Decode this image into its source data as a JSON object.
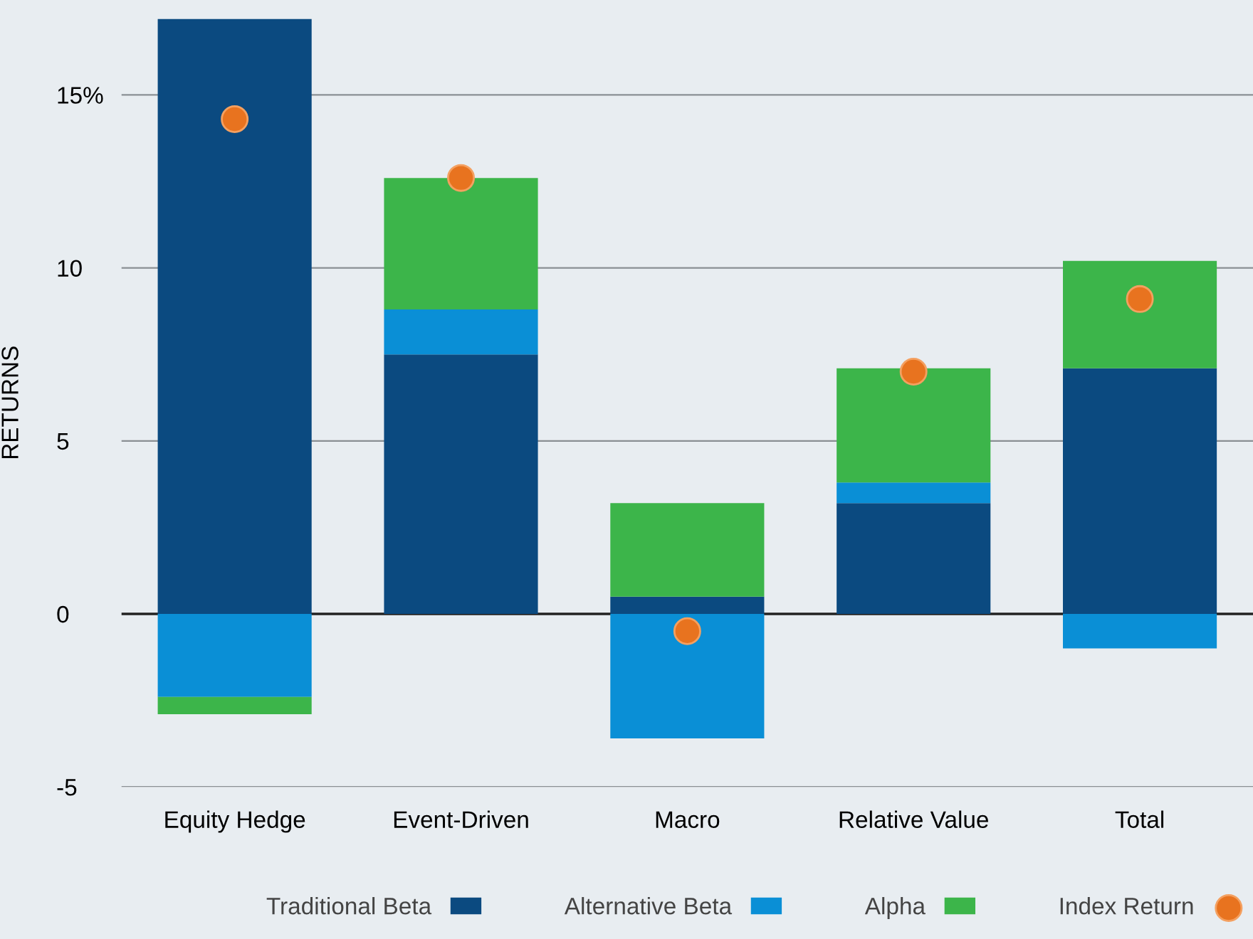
{
  "chart_data": {
    "type": "bar",
    "stacked": true,
    "ylabel": "RETURNS",
    "categories": [
      "Equity Hedge",
      "Event-Driven",
      "Macro",
      "Relative Value",
      "Total"
    ],
    "series": [
      {
        "name": "Traditional Beta",
        "color": "#0b4a80",
        "values": [
          17.2,
          7.5,
          0.5,
          3.2,
          7.1
        ]
      },
      {
        "name": "Alternative Beta",
        "color": "#0a8fd6",
        "values": [
          -2.4,
          1.3,
          -3.6,
          0.6,
          -1.0
        ]
      },
      {
        "name": "Alpha",
        "color": "#3cb54a",
        "values": [
          -0.5,
          3.8,
          2.7,
          3.3,
          3.1
        ]
      },
      {
        "name": "Index Return",
        "type": "scatter",
        "color": "#e8731f",
        "marker": "circle",
        "x": [
          "Equity Hedge",
          "Event-Driven",
          "Macro",
          "Relative Value",
          "Total"
        ],
        "values": [
          14.3,
          12.6,
          -0.5,
          7.0,
          9.1
        ]
      }
    ],
    "ylim": [
      -5,
      17.2
    ],
    "yticks": [
      {
        "value": 15,
        "label": "15%"
      },
      10,
      5,
      0,
      -5
    ],
    "grid": "y",
    "legend": "bottom"
  }
}
